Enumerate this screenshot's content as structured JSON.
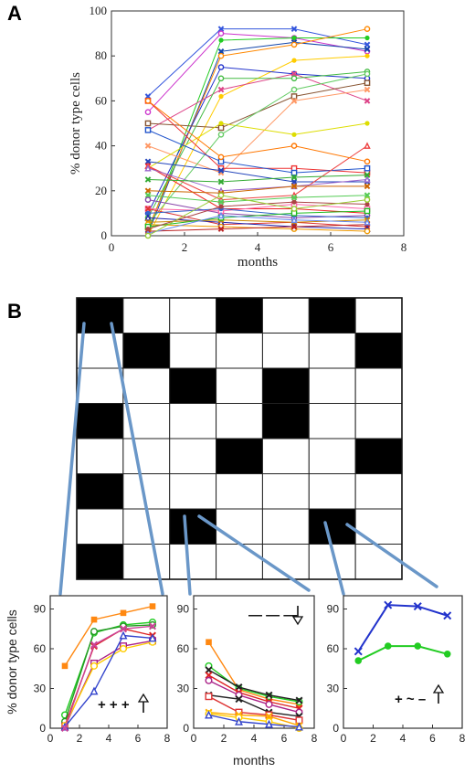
{
  "panels": {
    "a_label": "A",
    "b_label": "B"
  },
  "chart_data": [
    {
      "type": "line",
      "panel": "A",
      "xlabel": "months",
      "ylabel": "% donor type cells",
      "xlim": [
        0,
        8
      ],
      "ylim": [
        0,
        100
      ],
      "xticks": [
        "0",
        "2",
        "4",
        "6",
        "8"
      ],
      "yticks": [
        "0",
        "20",
        "40",
        "60",
        "80",
        "100"
      ],
      "x": [
        1,
        3,
        5,
        7
      ],
      "series": [
        {
          "values": [
            62,
            92,
            92,
            85
          ],
          "color": "#3355dd",
          "marker": "x"
        },
        {
          "values": [
            55,
            90,
            88,
            82
          ],
          "color": "#cc33cc",
          "marker": "circle"
        },
        {
          "values": [
            2,
            87,
            88,
            88
          ],
          "color": "#22cc22",
          "marker": "dot"
        },
        {
          "values": [
            1,
            82,
            86,
            83
          ],
          "color": "#1144aa",
          "marker": "x"
        },
        {
          "values": [
            3,
            80,
            85,
            92
          ],
          "color": "#ff8800",
          "marker": "circle"
        },
        {
          "values": [
            0,
            62,
            78,
            80
          ],
          "color": "#ffcc00",
          "marker": "dot"
        },
        {
          "values": [
            10,
            75,
            72,
            70
          ],
          "color": "#2233cc",
          "marker": "circle"
        },
        {
          "values": [
            47,
            65,
            72,
            60
          ],
          "color": "#dd4488",
          "marker": "x"
        },
        {
          "values": [
            50,
            48,
            62,
            68
          ],
          "color": "#885533",
          "marker": "square"
        },
        {
          "values": [
            8,
            70,
            70,
            73
          ],
          "color": "#44bb44",
          "marker": "circle"
        },
        {
          "values": [
            40,
            28,
            60,
            65
          ],
          "color": "#ff9966",
          "marker": "x"
        },
        {
          "values": [
            30,
            50,
            45,
            50
          ],
          "color": "#dddd00",
          "marker": "dot"
        },
        {
          "values": [
            5,
            45,
            65,
            72
          ],
          "color": "#66cc66",
          "marker": "circle"
        },
        {
          "values": [
            60,
            30,
            30,
            28
          ],
          "color": "#ee3333",
          "marker": "square"
        },
        {
          "values": [
            47,
            33,
            28,
            30
          ],
          "color": "#2255cc",
          "marker": "square"
        },
        {
          "values": [
            33,
            29,
            24,
            24
          ],
          "color": "#2244bb",
          "marker": "x"
        },
        {
          "values": [
            31,
            12,
            12,
            10
          ],
          "color": "#ee2222",
          "marker": "x"
        },
        {
          "values": [
            31,
            16,
            18,
            40
          ],
          "color": "#ee4444",
          "marker": "triangle"
        },
        {
          "values": [
            30,
            20,
            22,
            25
          ],
          "color": "#9966cc",
          "marker": "triangle"
        },
        {
          "values": [
            25,
            24,
            26,
            27
          ],
          "color": "#33aa33",
          "marker": "x"
        },
        {
          "values": [
            20,
            19,
            22,
            22
          ],
          "color": "#cc6600",
          "marker": "x"
        },
        {
          "values": [
            18,
            15,
            17,
            18
          ],
          "color": "#55cc55",
          "marker": "x"
        },
        {
          "values": [
            16,
            10,
            8,
            9
          ],
          "color": "#8844aa",
          "marker": "circle"
        },
        {
          "values": [
            12,
            11,
            14,
            12
          ],
          "color": "#ff66aa",
          "marker": "square"
        },
        {
          "values": [
            12,
            5,
            6,
            4
          ],
          "color": "#dd3333",
          "marker": "x"
        },
        {
          "values": [
            10,
            12,
            9,
            8
          ],
          "color": "#3366cc",
          "marker": "dot"
        },
        {
          "values": [
            8,
            6,
            4,
            3
          ],
          "color": "#2222aa",
          "marker": "triangle"
        },
        {
          "values": [
            6,
            7,
            6,
            7
          ],
          "color": "#cc8800",
          "marker": "x"
        },
        {
          "values": [
            5,
            4,
            3,
            2
          ],
          "color": "#ee9900",
          "marker": "circle"
        },
        {
          "values": [
            4,
            8,
            10,
            11
          ],
          "color": "#22bb22",
          "marker": "square"
        },
        {
          "values": [
            2,
            3,
            4,
            5
          ],
          "color": "#bb2222",
          "marker": "x"
        },
        {
          "values": [
            1,
            9,
            7,
            6
          ],
          "color": "#6688ee",
          "marker": "triangle"
        },
        {
          "values": [
            3,
            13,
            15,
            14
          ],
          "color": "#aa4444",
          "marker": "dot"
        },
        {
          "values": [
            0,
            18,
            12,
            16
          ],
          "color": "#99cc33",
          "marker": "circle"
        },
        {
          "values": [
            60,
            35,
            40,
            33
          ],
          "color": "#ff7700",
          "marker": "circle"
        }
      ]
    },
    {
      "type": "heatmap",
      "panel": "B",
      "rows": 8,
      "cols": 7,
      "cells": [
        [
          1,
          0,
          0,
          1,
          0,
          1,
          0
        ],
        [
          0,
          1,
          0,
          0,
          0,
          0,
          1
        ],
        [
          0,
          0,
          1,
          0,
          1,
          0,
          0
        ],
        [
          1,
          0,
          0,
          0,
          1,
          0,
          0
        ],
        [
          0,
          0,
          0,
          1,
          0,
          0,
          1
        ],
        [
          1,
          0,
          0,
          0,
          0,
          0,
          0
        ],
        [
          0,
          0,
          1,
          0,
          0,
          1,
          0
        ],
        [
          1,
          0,
          0,
          0,
          0,
          0,
          0
        ]
      ]
    },
    {
      "type": "line",
      "panel": "B-1",
      "ylabel": "% donor type cells",
      "xlim": [
        0,
        8
      ],
      "ylim": [
        0,
        100
      ],
      "xticks": [
        "0",
        "2",
        "4",
        "6",
        "8"
      ],
      "yticks": [
        "0",
        "30",
        "60",
        "90"
      ],
      "annotation": "+ + +",
      "x": [
        1,
        3,
        5,
        7
      ],
      "series": [
        {
          "values": [
            47,
            82,
            87,
            92
          ],
          "color": "#ff8811",
          "marker": "square-filled"
        },
        {
          "values": [
            10,
            72,
            78,
            80
          ],
          "color": "#22cc22",
          "marker": "circle"
        },
        {
          "values": [
            5,
            73,
            77,
            78
          ],
          "color": "#229922",
          "marker": "circle"
        },
        {
          "values": [
            2,
            62,
            75,
            70
          ],
          "color": "#dd2222",
          "marker": "x"
        },
        {
          "values": [
            1,
            49,
            62,
            66
          ],
          "color": "#aa2288",
          "marker": "square"
        },
        {
          "values": [
            2,
            47,
            60,
            65
          ],
          "color": "#ffcc00",
          "marker": "circle"
        },
        {
          "values": [
            1,
            28,
            70,
            68
          ],
          "color": "#3344cc",
          "marker": "triangle"
        },
        {
          "values": [
            0,
            63,
            75,
            77
          ],
          "color": "#cc4499",
          "marker": "x"
        }
      ]
    },
    {
      "type": "line",
      "panel": "B-2",
      "xlabel": "months",
      "xlim": [
        0,
        8
      ],
      "ylim": [
        0,
        100
      ],
      "xticks": [
        "0",
        "2",
        "4",
        "6",
        "8"
      ],
      "yticks": [
        "0",
        "30",
        "60",
        "90"
      ],
      "annotation": "— — —",
      "x": [
        1,
        3,
        5,
        7
      ],
      "series": [
        {
          "values": [
            65,
            29,
            22,
            18
          ],
          "color": "#ff8811",
          "marker": "square-filled"
        },
        {
          "values": [
            47,
            30,
            24,
            20
          ],
          "color": "#22cc22",
          "marker": "circle"
        },
        {
          "values": [
            44,
            31,
            25,
            21
          ],
          "color": "#222222",
          "marker": "x"
        },
        {
          "values": [
            40,
            27,
            20,
            15
          ],
          "color": "#dd2222",
          "marker": "x"
        },
        {
          "values": [
            36,
            25,
            18,
            12
          ],
          "color": "#aa2288",
          "marker": "circle"
        },
        {
          "values": [
            25,
            22,
            12,
            9
          ],
          "color": "#222222",
          "marker": "x"
        },
        {
          "values": [
            24,
            12,
            10,
            6
          ],
          "color": "#dd3333",
          "marker": "square"
        },
        {
          "values": [
            12,
            10,
            9,
            2
          ],
          "color": "#ffaa00",
          "marker": "x"
        },
        {
          "values": [
            11,
            8,
            5,
            0
          ],
          "color": "#ffcc00",
          "marker": "circle"
        },
        {
          "values": [
            10,
            5,
            3,
            1
          ],
          "color": "#3344cc",
          "marker": "triangle"
        }
      ]
    },
    {
      "type": "line",
      "panel": "B-3",
      "xlim": [
        0,
        8
      ],
      "ylim": [
        0,
        100
      ],
      "xticks": [
        "0",
        "2",
        "4",
        "6",
        "8"
      ],
      "yticks": [
        "0",
        "30",
        "60",
        "90"
      ],
      "annotation": "+ ~ –",
      "x": [
        1,
        3,
        5,
        7
      ],
      "series": [
        {
          "values": [
            58,
            93,
            92,
            85
          ],
          "color": "#2233cc",
          "marker": "x"
        },
        {
          "values": [
            51,
            62,
            62,
            56
          ],
          "color": "#22cc22",
          "marker": "dot"
        }
      ]
    }
  ]
}
